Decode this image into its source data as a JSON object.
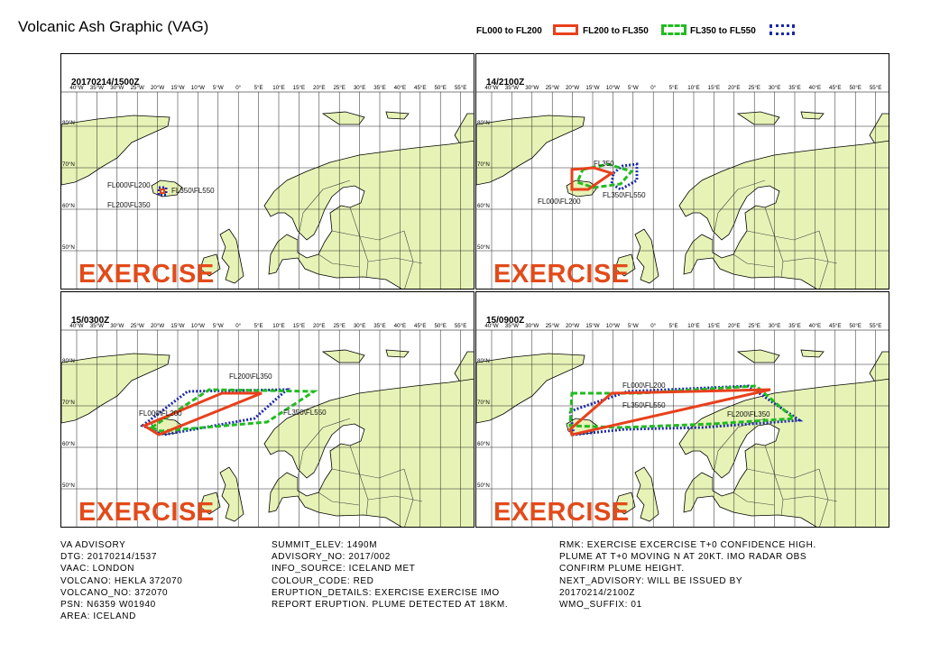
{
  "header": {
    "title": "Volcanic Ash Graphic (VAG)"
  },
  "legend": [
    {
      "label": "FL000 to FL200",
      "color": "#e8401c",
      "style": "solid"
    },
    {
      "label": "FL200 to FL350",
      "color": "#22bb22",
      "style": "dashed"
    },
    {
      "label": "FL350 to FL550",
      "color": "#1a2aa8",
      "style": "dotted"
    }
  ],
  "lon_labels": [
    "40°W",
    "35°W",
    "30°W",
    "25°W",
    "20°W",
    "15°W",
    "10°W",
    "5°W",
    "0°",
    "5°E",
    "10°E",
    "15°E",
    "20°E",
    "25°E",
    "30°E",
    "35°E",
    "40°E",
    "45°E",
    "50°E",
    "55°E"
  ],
  "lat_labels": [
    "80°N",
    "70°N",
    "60°N",
    "50°N"
  ],
  "panels": [
    {
      "title": "20170214/1500Z",
      "watermark": "EXERCISE",
      "annotations": [
        "FL000\\FL200",
        "FL350\\FL550",
        "FL200\\FL350"
      ]
    },
    {
      "title": "14/2100Z",
      "watermark": "EXERCISE",
      "annotations": [
        "FL350",
        "FL350\\FL550",
        "FL000\\FL200"
      ]
    },
    {
      "title": "15/0300Z",
      "watermark": "EXERCISE",
      "annotations": [
        "FL200\\FL350",
        "FL000\\FL200",
        "FL350\\FL550"
      ]
    },
    {
      "title": "15/0900Z",
      "watermark": "EXERCISE",
      "annotations": [
        "FL000\\FL200",
        "FL350\\FL550",
        "FL200\\FL350"
      ]
    }
  ],
  "advisory": {
    "col1": [
      "VA ADVISORY",
      "DTG: 20170214/1537",
      "VAAC: LONDON",
      "VOLCANO: HEKLA 372070",
      "VOLCANO_NO: 372070",
      "PSN: N6359 W01940",
      "AREA: ICELAND"
    ],
    "col2": [
      "SUMMIT_ELEV: 1490M",
      "ADVISORY_NO: 2017/002",
      "INFO_SOURCE: ICELAND MET",
      "COLOUR_CODE: RED",
      "ERUPTION_DETAILS: EXERCISE EXERCISE IMO",
      "REPORT  ERUPTION. PLUME DETECTED AT 18KM."
    ],
    "col3": [
      "RMK: EXERCISE EXCERCISE T+0 CONFIDENCE HIGH.",
      "PLUME AT T+0 MOVING N AT 20KT. IMO RADAR OBS",
      "CONFIRM PLUME HEIGHT.",
      "NEXT_ADVISORY: WILL BE ISSUED BY",
      "20170214/2100Z",
      "WMO_SUFFIX: 01"
    ]
  }
}
